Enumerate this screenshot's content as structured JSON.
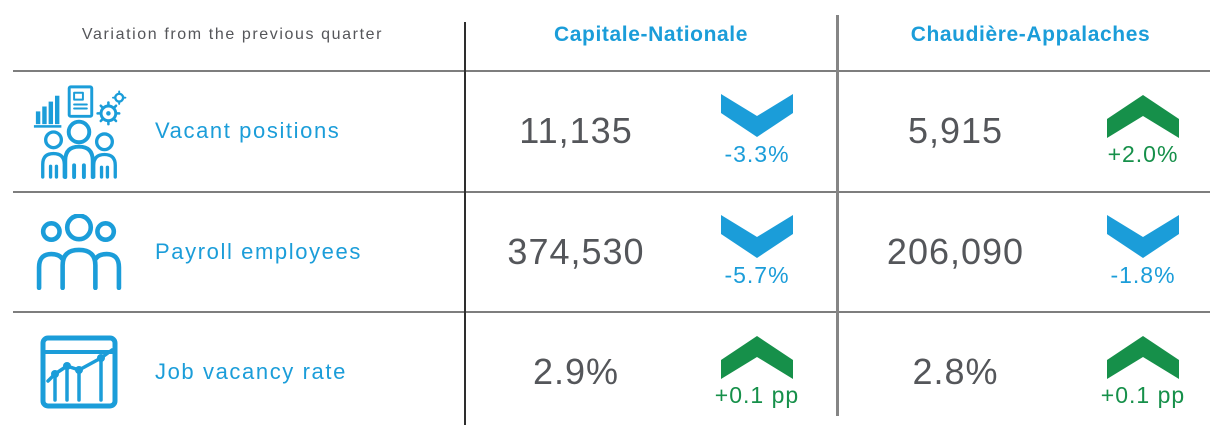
{
  "header": {
    "corner_label": "Variation from the previous quarter"
  },
  "columns": [
    {
      "label": "Capitale-Nationale"
    },
    {
      "label": "Chaudière-Appalaches"
    }
  ],
  "rows": [
    {
      "label": "Vacant positions",
      "icon": "workforce-analysis-icon",
      "cells": [
        {
          "value": "11,135",
          "change": "-3.3%",
          "direction": "down",
          "trend_color": "blue"
        },
        {
          "value": "5,915",
          "change": "+2.0%",
          "direction": "up",
          "trend_color": "green"
        }
      ]
    },
    {
      "label": "Payroll employees",
      "icon": "people-group-icon",
      "cells": [
        {
          "value": "374,530",
          "change": "-5.7%",
          "direction": "down",
          "trend_color": "blue"
        },
        {
          "value": "206,090",
          "change": "-1.8%",
          "direction": "down",
          "trend_color": "blue"
        }
      ]
    },
    {
      "label": "Job vacancy rate",
      "icon": "chart-window-icon",
      "cells": [
        {
          "value": "2.9%",
          "change": "+0.1 pp",
          "direction": "up",
          "trend_color": "green"
        },
        {
          "value": "2.8%",
          "change": "+0.1 pp",
          "direction": "up",
          "trend_color": "green"
        }
      ]
    }
  ],
  "colors": {
    "blue": "#1b9dd9",
    "green": "#16904a",
    "value_text": "#54565a",
    "header_text": "#55565a",
    "line_gray": "#7e7e7e"
  },
  "chart_data": {
    "type": "table",
    "title": "Variation from the previous quarter",
    "columns": [
      "Capitale-Nationale",
      "Chaudière-Appalaches"
    ],
    "rows": [
      {
        "metric": "Vacant positions",
        "capitale_nationale": {
          "value": 11135,
          "change": "-3.3%"
        },
        "chaudiere_appalaches": {
          "value": 5915,
          "change": "+2.0%"
        }
      },
      {
        "metric": "Payroll employees",
        "capitale_nationale": {
          "value": 374530,
          "change": "-5.7%"
        },
        "chaudiere_appalaches": {
          "value": 206090,
          "change": "-1.8%"
        }
      },
      {
        "metric": "Job vacancy rate",
        "capitale_nationale": {
          "value": "2.9%",
          "change": "+0.1 pp"
        },
        "chaudiere_appalaches": {
          "value": "2.8%",
          "change": "+0.1 pp"
        }
      }
    ]
  }
}
